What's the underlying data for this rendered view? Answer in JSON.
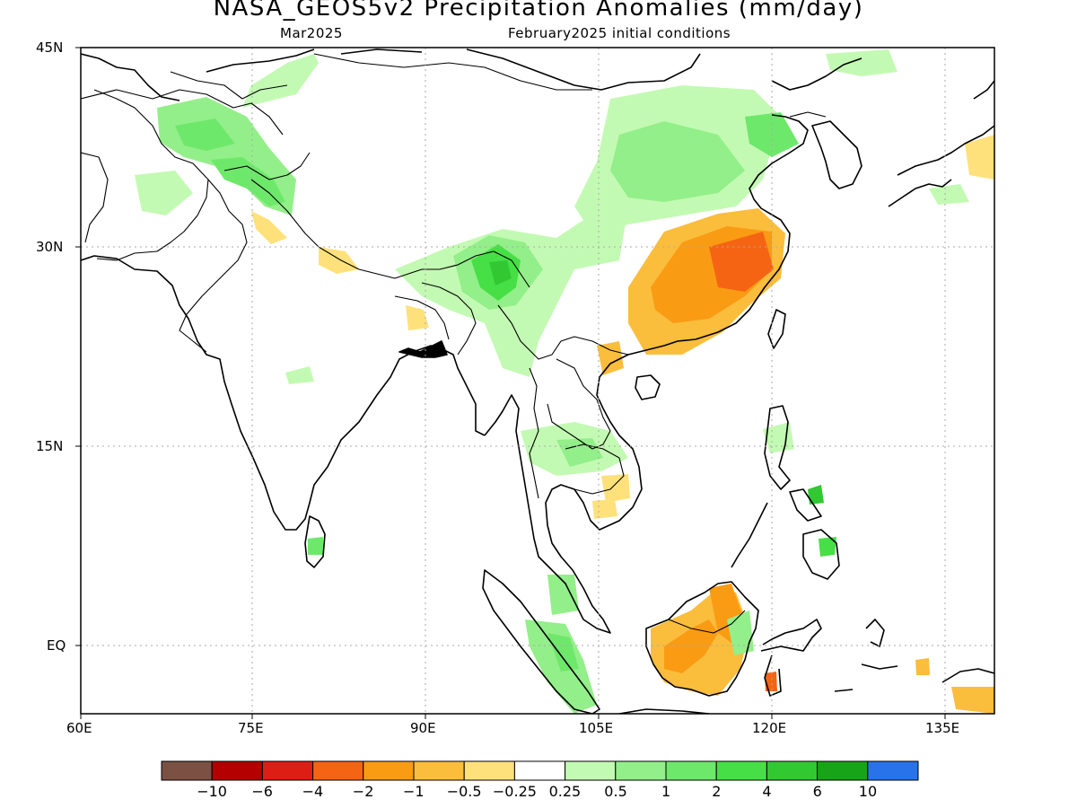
{
  "header": {
    "title": "NASA_GEOS5v2 Precipitation Anomalies (mm/day)",
    "valid_month": "Mar2025",
    "init_conditions": "February2025 initial conditions"
  },
  "map": {
    "lat_labels": [
      "45N",
      "30N",
      "15N",
      "EQ"
    ],
    "lon_labels": [
      "60E",
      "75E",
      "90E",
      "105E",
      "120E",
      "135E"
    ]
  },
  "colorbar": {
    "colors": [
      "#7a5143",
      "#b40000",
      "#dc1e14",
      "#f56413",
      "#fa9b14",
      "#fbbd3c",
      "#ffe17b",
      "#ffffff",
      "#c3fab3",
      "#93ef89",
      "#6ee86b",
      "#46df46",
      "#32c832",
      "#17a417",
      "#2873ea"
    ],
    "labels": [
      "−10",
      "−6",
      "−4",
      "−2",
      "−1",
      "−0.5",
      "−0.25",
      "0.25",
      "0.5",
      "1",
      "2",
      "4",
      "6",
      "10"
    ]
  }
}
